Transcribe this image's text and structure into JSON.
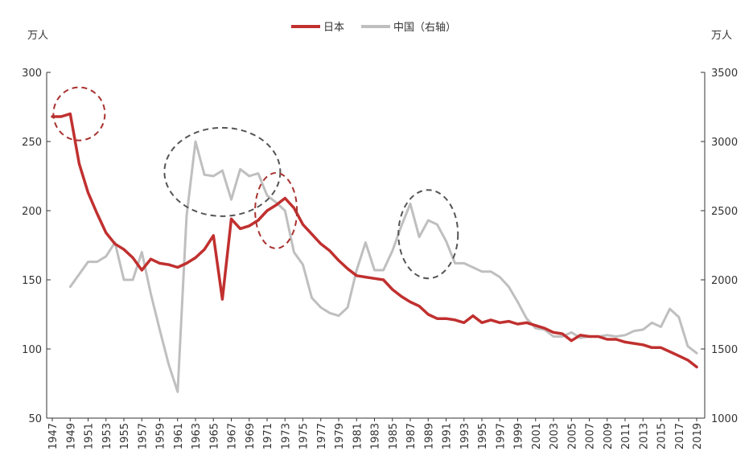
{
  "chart_data": {
    "type": "line",
    "title": "",
    "left_unit": "万人",
    "right_unit": "万人",
    "ylim_left": [
      50,
      300
    ],
    "yticks_left": [
      50,
      100,
      150,
      200,
      250,
      300
    ],
    "ylim_right": [
      1000,
      3500
    ],
    "yticks_right": [
      1000,
      1500,
      2000,
      2500,
      3000,
      3500
    ],
    "xlim": [
      1947,
      2019
    ],
    "xticks": [
      1947,
      1949,
      1951,
      1953,
      1955,
      1957,
      1959,
      1961,
      1963,
      1965,
      1967,
      1969,
      1971,
      1973,
      1975,
      1977,
      1979,
      1981,
      1983,
      1985,
      1987,
      1989,
      1991,
      1993,
      1995,
      1997,
      1999,
      2001,
      2003,
      2005,
      2007,
      2009,
      2011,
      2013,
      2015,
      2017,
      2019
    ],
    "legend_position": "top-center",
    "grid": false,
    "series": [
      {
        "name": "日本",
        "axis": "left",
        "color": "#c0302f",
        "x": [
          1947,
          1948,
          1949,
          1950,
          1951,
          1952,
          1953,
          1954,
          1955,
          1956,
          1957,
          1958,
          1959,
          1960,
          1961,
          1962,
          1963,
          1964,
          1965,
          1966,
          1967,
          1968,
          1969,
          1970,
          1971,
          1972,
          1973,
          1974,
          1975,
          1976,
          1977,
          1978,
          1979,
          1980,
          1981,
          1982,
          1983,
          1984,
          1985,
          1986,
          1987,
          1988,
          1989,
          1990,
          1991,
          1992,
          1993,
          1994,
          1995,
          1996,
          1997,
          1998,
          1999,
          2000,
          2001,
          2002,
          2003,
          2004,
          2005,
          2006,
          2007,
          2008,
          2009,
          2010,
          2011,
          2012,
          2013,
          2014,
          2015,
          2016,
          2017,
          2018,
          2019
        ],
        "values": [
          268,
          268,
          270,
          234,
          213,
          198,
          184,
          176,
          172,
          166,
          157,
          165,
          162,
          161,
          159,
          162,
          166,
          172,
          182,
          136,
          194,
          187,
          189,
          193,
          200,
          204,
          209,
          202,
          190,
          183,
          176,
          171,
          164,
          158,
          153,
          152,
          151,
          150,
          143,
          138,
          134,
          131,
          125,
          122,
          122,
          121,
          119,
          124,
          119,
          121,
          119,
          120,
          118,
          119,
          117,
          115,
          112,
          111,
          106,
          110,
          109,
          109,
          107,
          107,
          105,
          104,
          103,
          101,
          101,
          98,
          95,
          92,
          87
        ]
      },
      {
        "name": "中国（右轴）",
        "axis": "right",
        "color": "#bfbfbf",
        "x": [
          1949,
          1950,
          1951,
          1952,
          1953,
          1954,
          1955,
          1956,
          1957,
          1958,
          1959,
          1960,
          1961,
          1962,
          1963,
          1964,
          1965,
          1966,
          1967,
          1968,
          1969,
          1970,
          1971,
          1972,
          1973,
          1974,
          1975,
          1976,
          1977,
          1978,
          1979,
          1980,
          1981,
          1982,
          1983,
          1984,
          1985,
          1986,
          1987,
          1988,
          1989,
          1990,
          1991,
          1992,
          1993,
          1994,
          1995,
          1996,
          1997,
          1998,
          1999,
          2000,
          2001,
          2002,
          2003,
          2004,
          2005,
          2006,
          2007,
          2008,
          2009,
          2010,
          2011,
          2012,
          2013,
          2014,
          2015,
          2016,
          2017,
          2018,
          2019
        ],
        "values": [
          1950,
          2040,
          2130,
          2130,
          2170,
          2270,
          2000,
          2000,
          2200,
          1900,
          1640,
          1390,
          1190,
          2460,
          3000,
          2760,
          2750,
          2790,
          2580,
          2800,
          2750,
          2770,
          2610,
          2560,
          2500,
          2200,
          2110,
          1870,
          1800,
          1760,
          1740,
          1800,
          2070,
          2270,
          2070,
          2070,
          2210,
          2390,
          2550,
          2310,
          2430,
          2400,
          2280,
          2120,
          2120,
          2090,
          2060,
          2060,
          2020,
          1950,
          1840,
          1720,
          1650,
          1640,
          1590,
          1590,
          1620,
          1580,
          1590,
          1590,
          1600,
          1590,
          1600,
          1630,
          1640,
          1690,
          1660,
          1790,
          1730,
          1520,
          1470
        ]
      }
    ],
    "annotations": [
      {
        "type": "dashed-ellipse",
        "color": "#a8322f",
        "x": 1950,
        "y_left": 270
      },
      {
        "type": "dashed-ellipse",
        "color": "#555555",
        "x": 1966,
        "y_left": 228
      },
      {
        "type": "dashed-ellipse",
        "color": "#a8322f",
        "x": 1972,
        "y_left": 200
      },
      {
        "type": "dashed-ellipse",
        "color": "#555555",
        "x": 1989,
        "y_left": 183
      }
    ]
  }
}
